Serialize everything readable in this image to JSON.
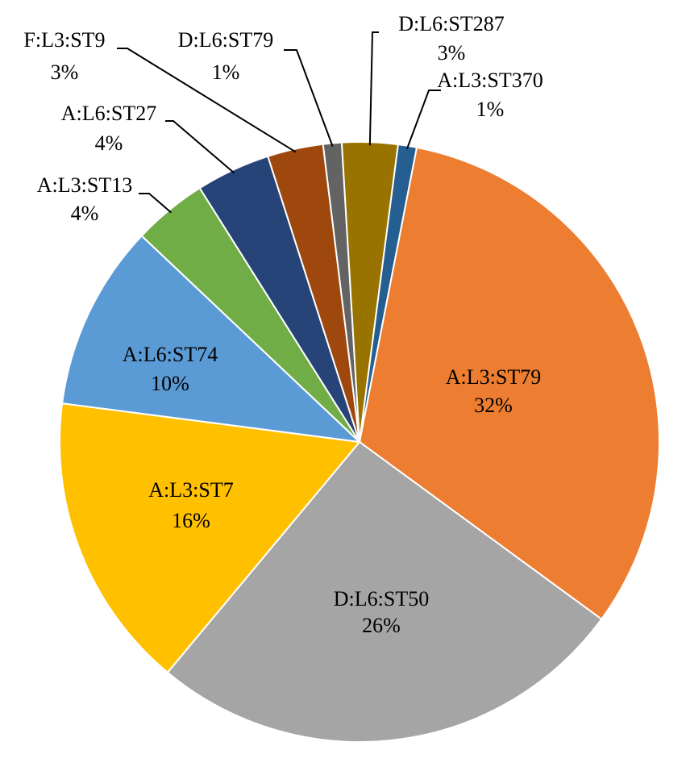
{
  "chart_data": {
    "type": "pie",
    "start_angle": 11,
    "categories": [
      "A:L3:ST79",
      "D:L6:ST50",
      "A:L3:ST7",
      "A:L6:ST74",
      "A:L3:ST13",
      "A:L6:ST27",
      "F:L3:ST9",
      "D:L6:ST79",
      "D:L6:ST287",
      "A:L3:ST370"
    ],
    "values": [
      32,
      26,
      16,
      10,
      4,
      4,
      3,
      1,
      3,
      1
    ],
    "value_labels": [
      "32%",
      "26%",
      "16%",
      "10%",
      "4%",
      "4%",
      "3%",
      "1%",
      "3%",
      "1%"
    ],
    "colors": [
      "#ed7d31",
      "#a5a5a5",
      "#ffc000",
      "#5b9bd5",
      "#70ad47",
      "#264478",
      "#9e480e",
      "#636363",
      "#997300",
      "#255e91"
    ]
  }
}
